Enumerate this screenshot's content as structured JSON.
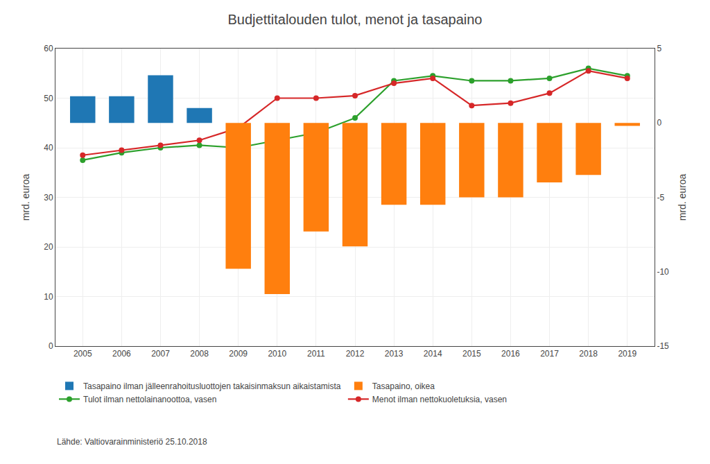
{
  "chart_data": {
    "type": "bar",
    "title": "Budjettitalouden tulot, menot ja tasapaino",
    "ylabel": "mrd. euroa",
    "y2label": "mrd. euroa",
    "x": [
      2005,
      2006,
      2007,
      2008,
      2009,
      2010,
      2011,
      2012,
      2013,
      2014,
      2015,
      2016,
      2017,
      2018,
      2019
    ],
    "xlim": [
      2004.3,
      2019.7
    ],
    "xticks": [
      2005,
      2006,
      2007,
      2008,
      2009,
      2010,
      2011,
      2012,
      2013,
      2014,
      2015,
      2016,
      2017,
      2018,
      2019
    ],
    "ylim": [
      0,
      60
    ],
    "yticks": [
      0,
      10,
      20,
      30,
      40,
      50,
      60
    ],
    "y2lim": [
      -15,
      5
    ],
    "y2ticks": [
      -15,
      -10,
      -5,
      0,
      5
    ],
    "grid": true,
    "legend": "bottom",
    "annotations": [
      "Lähde: Valtiovarainministeriö 25.10.2018"
    ],
    "series": [
      {
        "name": "Tasapaino ilman jälleenrahoitusluottojen takaisinmaksun aikaistamista",
        "type": "bar",
        "axis": "y2",
        "values": [
          1.8,
          1.8,
          3.2,
          1.0,
          null,
          null,
          null,
          null,
          null,
          null,
          null,
          null,
          null,
          null,
          null
        ]
      },
      {
        "name": "Tasapaino, oikea",
        "type": "bar",
        "axis": "y2",
        "values": [
          null,
          null,
          null,
          null,
          -9.8,
          -11.5,
          -7.3,
          -8.3,
          -5.5,
          -5.5,
          -5.0,
          -5.0,
          -4.0,
          -3.5,
          -0.2
        ]
      },
      {
        "name": "Tulot ilman nettolainanoottoa, vasen",
        "type": "line",
        "marker": "circle",
        "values": [
          37.5,
          39.0,
          40.0,
          40.5,
          40.0,
          41.5,
          43.0,
          46.0,
          53.5,
          54.5,
          53.5,
          53.5,
          54.0,
          56.0,
          54.5
        ]
      },
      {
        "name": "Menot ilman nettokuoletuksia, vasen",
        "type": "line",
        "marker": "circle",
        "values": [
          38.5,
          39.5,
          40.5,
          41.5,
          44.0,
          50.0,
          50.0,
          50.5,
          53.0,
          54.0,
          48.5,
          49.0,
          51.0,
          55.5,
          54.0
        ]
      }
    ]
  }
}
